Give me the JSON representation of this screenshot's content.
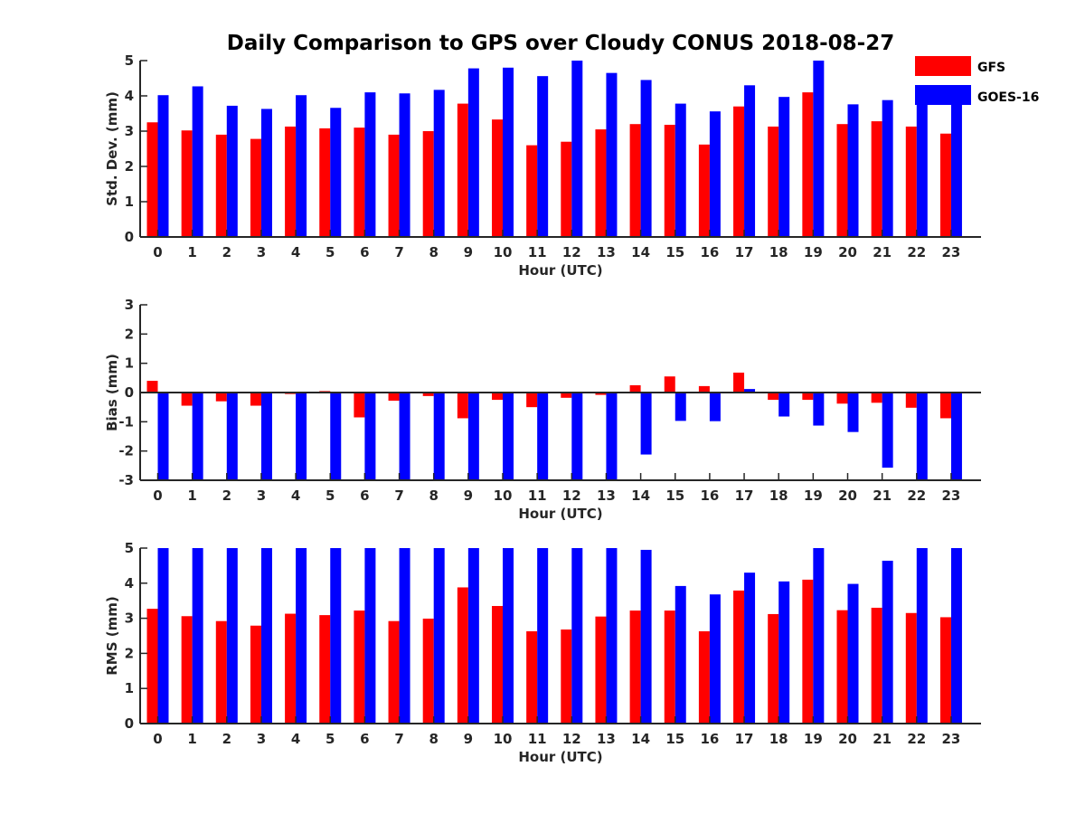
{
  "title": "Daily Comparison to GPS over Cloudy CONUS 2018-08-27",
  "legend": {
    "placement": "top-right",
    "entries": [
      {
        "name": "GFS",
        "color": "#ff0000"
      },
      {
        "name": "GOES-16",
        "color": "#0000ff"
      }
    ]
  },
  "chart_data": [
    {
      "type": "bar",
      "categories": [
        "0",
        "1",
        "2",
        "3",
        "4",
        "5",
        "6",
        "7",
        "8",
        "9",
        "10",
        "11",
        "12",
        "13",
        "14",
        "15",
        "16",
        "17",
        "18",
        "19",
        "20",
        "21",
        "22",
        "23"
      ],
      "xlabel": "Hour (UTC)",
      "ylabel": "Std. Dev. (mm)",
      "ylim": [
        0,
        5
      ],
      "yticks": [
        0,
        1,
        2,
        3,
        4,
        5
      ],
      "series": [
        {
          "name": "GFS",
          "color": "#ff0000",
          "values": [
            3.25,
            3.02,
            2.9,
            2.78,
            3.13,
            3.08,
            3.1,
            2.9,
            3.0,
            3.78,
            3.33,
            2.6,
            2.7,
            3.05,
            3.2,
            3.18,
            2.62,
            3.7,
            3.13,
            4.1,
            3.2,
            3.28,
            3.13,
            2.93
          ]
        },
        {
          "name": "GOES-16",
          "color": "#0000ff",
          "values": [
            4.02,
            4.27,
            3.72,
            3.63,
            4.02,
            3.66,
            4.1,
            4.07,
            4.17,
            4.78,
            4.8,
            4.56,
            5.0,
            4.65,
            4.45,
            3.78,
            3.56,
            4.3,
            3.97,
            5.0,
            3.76,
            3.88,
            4.17,
            3.77
          ]
        }
      ]
    },
    {
      "type": "bar",
      "categories": [
        "0",
        "1",
        "2",
        "3",
        "4",
        "5",
        "6",
        "7",
        "8",
        "9",
        "10",
        "11",
        "12",
        "13",
        "14",
        "15",
        "16",
        "17",
        "18",
        "19",
        "20",
        "21",
        "22",
        "23"
      ],
      "xlabel": "Hour (UTC)",
      "ylabel": "Bias (mm)",
      "ylim": [
        -3,
        3
      ],
      "yticks": [
        -3,
        -2,
        -1,
        0,
        1,
        2,
        3
      ],
      "series": [
        {
          "name": "GFS",
          "color": "#ff0000",
          "values": [
            0.4,
            -0.45,
            -0.3,
            -0.45,
            -0.05,
            0.05,
            -0.85,
            -0.28,
            -0.12,
            -0.88,
            -0.25,
            -0.5,
            -0.18,
            -0.08,
            0.25,
            0.55,
            0.22,
            0.68,
            -0.25,
            -0.25,
            -0.38,
            -0.35,
            -0.52,
            -0.88
          ]
        },
        {
          "name": "GOES-16",
          "color": "#0000ff",
          "values": [
            -3.0,
            -3.0,
            -3.0,
            -3.0,
            -3.0,
            -3.0,
            -3.0,
            -3.0,
            -3.0,
            -3.0,
            -3.0,
            -3.0,
            -3.0,
            -3.0,
            -2.12,
            -0.97,
            -0.98,
            0.12,
            -0.82,
            -1.13,
            -1.35,
            -2.57,
            -3.0,
            -3.0
          ]
        }
      ]
    },
    {
      "type": "bar",
      "categories": [
        "0",
        "1",
        "2",
        "3",
        "4",
        "5",
        "6",
        "7",
        "8",
        "9",
        "10",
        "11",
        "12",
        "13",
        "14",
        "15",
        "16",
        "17",
        "18",
        "19",
        "20",
        "21",
        "22",
        "23"
      ],
      "xlabel": "Hour (UTC)",
      "ylabel": "RMS (mm)",
      "ylim": [
        0,
        5
      ],
      "yticks": [
        0,
        1,
        2,
        3,
        4,
        5
      ],
      "series": [
        {
          "name": "GFS",
          "color": "#ff0000",
          "values": [
            3.27,
            3.06,
            2.92,
            2.79,
            3.13,
            3.09,
            3.22,
            2.92,
            2.99,
            3.88,
            3.35,
            2.63,
            2.68,
            3.05,
            3.22,
            3.22,
            2.63,
            3.79,
            3.12,
            4.1,
            3.23,
            3.3,
            3.15,
            3.03
          ]
        },
        {
          "name": "GOES-16",
          "color": "#0000ff",
          "values": [
            5.0,
            5.0,
            5.0,
            5.0,
            5.0,
            5.0,
            5.0,
            5.0,
            5.0,
            5.0,
            5.0,
            5.0,
            5.0,
            5.0,
            4.95,
            3.92,
            3.68,
            4.3,
            4.05,
            5.0,
            3.98,
            4.64,
            5.0,
            5.0
          ]
        }
      ]
    }
  ]
}
